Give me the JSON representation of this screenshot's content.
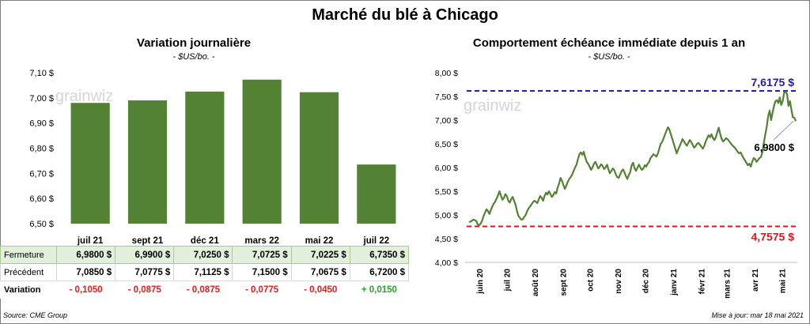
{
  "title": "Marché du blé à Chicago",
  "source": "Source: CME Group",
  "updated": "Mise à jour: mar 18 mai 2021",
  "watermark": "grainwiz",
  "colors": {
    "bar": "#548235",
    "line": "#548235",
    "high": "#2020a0",
    "low": "#e8121c",
    "table_highlight": "#e2efda",
    "negative": "#e02020",
    "positive": "#2ea02e"
  },
  "chart_data": [
    {
      "type": "bar",
      "title": "Variation journalière",
      "unit": "- $US/bo. -",
      "categories": [
        "juil 21",
        "sept 21",
        "déc 21",
        "mars 22",
        "mai 22",
        "juil 22"
      ],
      "values": [
        6.98,
        6.99,
        7.025,
        7.0725,
        7.0225,
        6.735
      ],
      "ylim": [
        6.5,
        7.1
      ],
      "yticks": [
        "6,50 $",
        "6,60 $",
        "6,70 $",
        "6,80 $",
        "6,90 $",
        "7,00 $",
        "7,10 $"
      ],
      "grid": false
    },
    {
      "type": "line",
      "title": "Comportement échéance immédiate depuis 1 an",
      "unit": "- $US/bo. -",
      "x_start": "2020-05-18",
      "x_end": "2021-05-18",
      "xticks": [
        "juin 20",
        "juil 20",
        "août 20",
        "sept 20",
        "oct 20",
        "nov 20",
        "déc 20",
        "janv 21",
        "févr 21",
        "mars 21",
        "avr 21",
        "mai 21"
      ],
      "yticks": [
        "4,00 $",
        "4,50 $",
        "5,00 $",
        "5,50 $",
        "6,00 $",
        "6,50 $",
        "7,00 $",
        "7,50 $",
        "8,00 $"
      ],
      "ylim": [
        4.0,
        8.0
      ],
      "values": [
        4.85,
        4.86,
        4.88,
        4.9,
        4.89,
        4.87,
        4.8,
        4.78,
        4.82,
        4.88,
        4.98,
        5.05,
        5.12,
        5.08,
        5.02,
        5.1,
        5.18,
        5.24,
        5.28,
        5.35,
        5.42,
        5.5,
        5.4,
        5.32,
        5.36,
        5.44,
        5.4,
        5.3,
        5.26,
        5.33,
        5.38,
        5.3,
        5.22,
        5.08,
        4.98,
        4.94,
        4.9,
        4.91,
        4.96,
        5.0,
        5.08,
        5.14,
        5.18,
        5.22,
        5.27,
        5.3,
        5.28,
        5.25,
        5.33,
        5.4,
        5.36,
        5.3,
        5.4,
        5.47,
        5.43,
        5.5,
        5.44,
        5.38,
        5.42,
        5.48,
        5.45,
        5.58,
        5.66,
        5.78,
        5.72,
        5.63,
        5.55,
        5.62,
        5.7,
        5.76,
        5.8,
        5.85,
        5.93,
        6.0,
        6.06,
        6.18,
        6.28,
        6.32,
        6.27,
        6.33,
        6.22,
        6.12,
        6.08,
        6.02,
        5.95,
        6.0,
        6.08,
        6.12,
        6.05,
        5.98,
        6.02,
        6.07,
        6.03,
        5.97,
        6.0,
        6.06,
        5.96,
        5.88,
        5.93,
        5.98,
        5.94,
        5.86,
        5.8,
        5.78,
        5.85,
        5.92,
        5.96,
        5.9,
        5.82,
        5.76,
        5.84,
        5.9,
        6.05,
        6.1,
        5.98,
        5.93,
        6.0,
        6.06,
        6.0,
        5.95,
        5.98,
        6.05,
        6.02,
        6.08,
        6.12,
        6.2,
        6.24,
        6.28,
        6.26,
        6.23,
        6.29,
        6.4,
        6.5,
        6.54,
        6.62,
        6.7,
        6.78,
        6.85,
        6.8,
        6.7,
        6.6,
        6.5,
        6.4,
        6.3,
        6.38,
        6.45,
        6.52,
        6.6,
        6.55,
        6.5,
        6.46,
        6.52,
        6.58,
        6.54,
        6.48,
        6.42,
        6.45,
        6.5,
        6.52,
        6.48,
        6.44,
        6.4,
        6.46,
        6.55,
        6.62,
        6.68,
        6.64,
        6.7,
        6.62,
        6.58,
        6.64,
        6.75,
        6.84,
        6.7,
        6.6,
        6.55,
        6.58,
        6.62,
        6.6,
        6.56,
        6.52,
        6.48,
        6.45,
        6.42,
        6.38,
        6.33,
        6.3,
        6.32,
        6.26,
        6.2,
        6.15,
        6.1,
        6.05,
        6.08,
        6.02,
        6.12,
        6.2,
        6.18,
        6.12,
        6.16,
        6.2,
        6.22,
        6.32,
        6.52,
        6.7,
        6.86,
        7.08,
        7.2,
        7.0,
        7.15,
        7.3,
        7.4,
        7.42,
        7.36,
        7.48,
        7.32,
        7.4,
        7.58,
        7.6,
        7.55,
        7.3,
        7.4,
        7.22,
        7.06,
        7.05,
        6.98
      ],
      "annotations": {
        "high": 7.6175,
        "low": 4.7575,
        "last": 6.98
      },
      "annotation_labels": {
        "high": "7,6175  $",
        "low": "4,7575  $",
        "last": "6,9800 $"
      }
    }
  ],
  "table": {
    "headers": [
      "juil 21",
      "sept 21",
      "déc 21",
      "mars 22",
      "mai 22",
      "juil 22"
    ],
    "rows": [
      {
        "label": "Fermeture",
        "values": [
          "6,9800  $",
          "6,9900  $",
          "7,0250  $",
          "7,0725  $",
          "7,0225  $",
          "6,7350  $"
        ]
      },
      {
        "label": "Précédent",
        "values": [
          "7,0850  $",
          "7,0775  $",
          "7,1125  $",
          "7,1500  $",
          "7,0675  $",
          "6,7200  $"
        ]
      },
      {
        "label": "Variation",
        "values": [
          "- 0,1050",
          "- 0,0875",
          "- 0,0875",
          "- 0,0775",
          "- 0,0450",
          "+ 0,0150"
        ]
      }
    ]
  }
}
